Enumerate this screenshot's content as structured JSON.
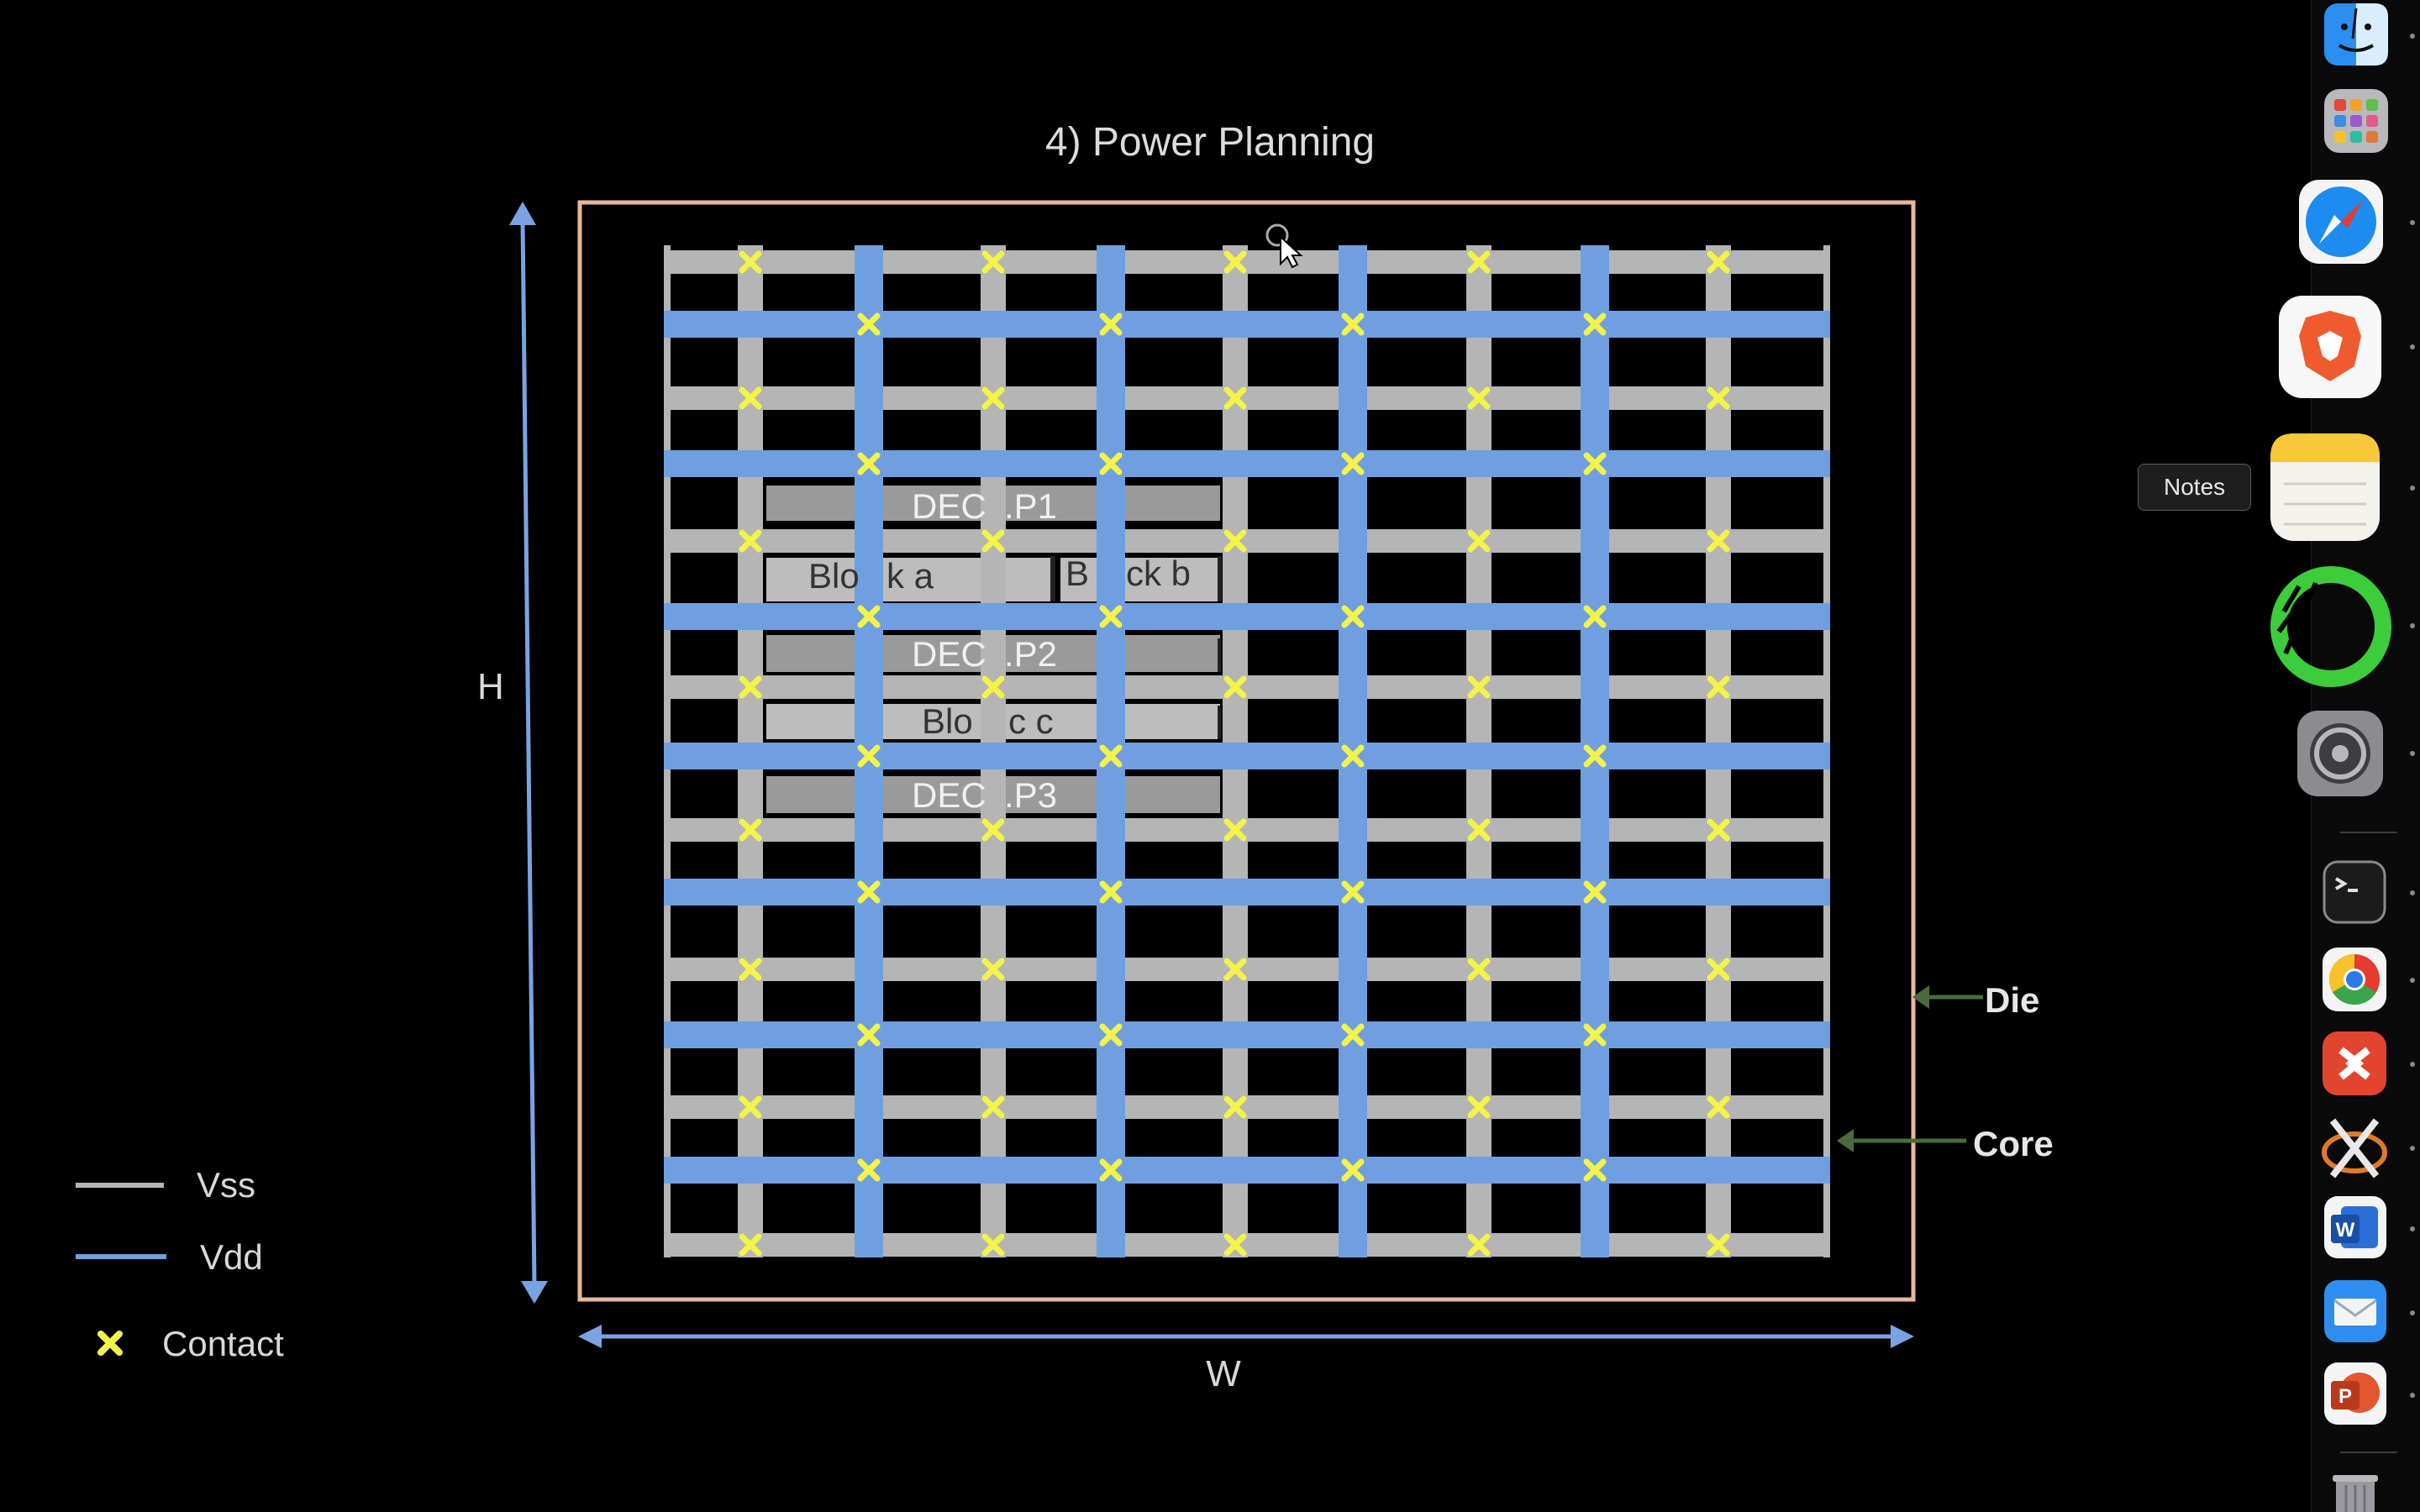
{
  "slide": {
    "title": "4) Power Planning",
    "labels": {
      "height": "H",
      "width": "W",
      "die": "Die",
      "core": "Core"
    },
    "blocks": {
      "dec1_left": "DEC",
      "dec1_right": ".P1",
      "block_a_left": "Blo",
      "block_a_right": "k a",
      "block_b_left": "B",
      "block_b_right": "ck b",
      "dec2_left": "DEC",
      "dec2_right": ".P2",
      "block_c_left": "Blo",
      "block_c_right": "c c",
      "dec3_left": "DEC",
      "dec3_right": ".P3"
    },
    "legend": {
      "vss": "Vss",
      "vdd": "Vdd",
      "contact": "Contact"
    },
    "colors": {
      "vss": "#b5b5b5",
      "vdd": "#6f9fe0",
      "contact": "#f3f34a",
      "die_border": "#e8b89a",
      "core_border": "#f0c2a8",
      "arrow": "#7aa3e3",
      "pointer_arrow": "#4a6b3a"
    }
  },
  "dock": {
    "tooltip": "Notes",
    "apps": [
      {
        "name": "Finder",
        "icon": "finder-icon"
      },
      {
        "name": "Launchpad",
        "icon": "launchpad-icon"
      },
      {
        "name": "Safari",
        "icon": "safari-icon"
      },
      {
        "name": "Brave",
        "icon": "brave-icon"
      },
      {
        "name": "Notes",
        "icon": "notes-icon"
      },
      {
        "name": "Activity",
        "icon": "activity-ring-icon"
      },
      {
        "name": "System Settings",
        "icon": "gear-icon"
      },
      {
        "name": "Terminal",
        "icon": "terminal-icon"
      },
      {
        "name": "Chrome",
        "icon": "chrome-icon"
      },
      {
        "name": "Remote Desktop",
        "icon": "remote-desktop-icon"
      },
      {
        "name": "XQuartz",
        "icon": "xquartz-icon"
      },
      {
        "name": "Word",
        "icon": "word-icon"
      },
      {
        "name": "Mail",
        "icon": "mail-icon"
      },
      {
        "name": "PowerPoint",
        "icon": "powerpoint-icon"
      },
      {
        "name": "Trash",
        "icon": "trash-icon"
      }
    ]
  }
}
